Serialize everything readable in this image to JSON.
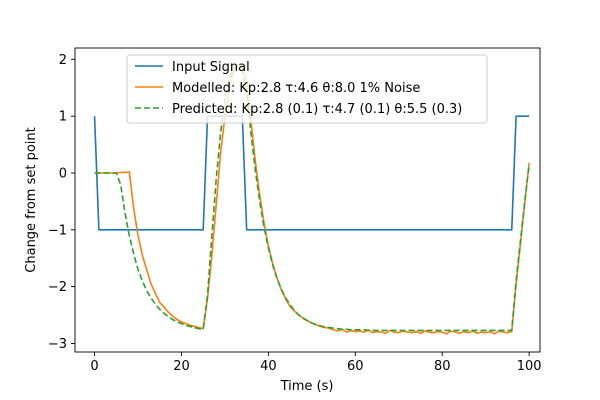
{
  "chart_data": {
    "type": "line",
    "xlabel": "Time (s)",
    "ylabel": "Change from set point",
    "xlim": [
      -4.5,
      102.5
    ],
    "ylim": [
      -3.15,
      2.2
    ],
    "xticks": [
      0,
      20,
      40,
      60,
      80,
      100
    ],
    "xtick_labels": [
      "0",
      "20",
      "40",
      "60",
      "80",
      "100"
    ],
    "yticks": [
      -3,
      -2,
      -1,
      0,
      1,
      2
    ],
    "ytick_labels": [
      "−3",
      "−2",
      "−1",
      "0",
      "1",
      "2"
    ],
    "grid": false,
    "legend_position": "top-center",
    "series": [
      {
        "name": "Input Signal",
        "color": "#1f77b4",
        "style": "solid",
        "x": [
          0,
          1,
          25,
          26,
          34,
          35,
          96,
          97,
          100
        ],
        "y": [
          1,
          -1,
          -1,
          1,
          1,
          -1,
          -1,
          1,
          1
        ]
      },
      {
        "name": "Modelled: Kp:2.8 τ:4.6 θ:8.0  1% Noise",
        "color": "#ff7f0e",
        "style": "solid",
        "x": [
          0,
          1,
          2,
          3,
          4,
          5,
          6,
          7,
          8,
          9,
          10,
          11,
          12,
          13,
          14,
          15,
          16,
          17,
          18,
          19,
          20,
          21,
          22,
          23,
          24,
          25,
          26,
          27,
          28,
          29,
          30,
          31,
          32,
          33,
          34,
          35,
          36,
          37,
          38,
          39,
          40,
          41,
          42,
          43,
          44,
          45,
          46,
          47,
          48,
          49,
          50,
          51,
          52,
          53,
          54,
          55,
          56,
          57,
          58,
          59,
          60,
          61,
          62,
          63,
          64,
          65,
          66,
          67,
          68,
          69,
          70,
          71,
          72,
          73,
          74,
          75,
          76,
          77,
          78,
          79,
          80,
          81,
          82,
          83,
          84,
          85,
          86,
          87,
          88,
          89,
          90,
          91,
          92,
          93,
          94,
          95,
          96,
          97,
          98,
          99,
          100
        ],
        "y": [
          0,
          0,
          0,
          0,
          0,
          0,
          0.01,
          0.01,
          0.02,
          -0.62,
          -1.1,
          -1.45,
          -1.7,
          -1.95,
          -2.12,
          -2.28,
          -2.36,
          -2.45,
          -2.52,
          -2.58,
          -2.62,
          -2.65,
          -2.68,
          -2.7,
          -2.72,
          -2.74,
          -2.2,
          -1.45,
          -0.55,
          0.35,
          1.0,
          1.5,
          1.8,
          1.9,
          1.9,
          1.62,
          0.92,
          0.2,
          -0.38,
          -0.88,
          -1.28,
          -1.6,
          -1.85,
          -2.06,
          -2.22,
          -2.35,
          -2.43,
          -2.5,
          -2.55,
          -2.6,
          -2.64,
          -2.67,
          -2.7,
          -2.72,
          -2.73,
          -2.76,
          -2.78,
          -2.75,
          -2.8,
          -2.77,
          -2.79,
          -2.78,
          -2.8,
          -2.76,
          -2.81,
          -2.79,
          -2.8,
          -2.82,
          -2.77,
          -2.8,
          -2.81,
          -2.78,
          -2.8,
          -2.81,
          -2.79,
          -2.82,
          -2.78,
          -2.8,
          -2.81,
          -2.79,
          -2.8,
          -2.83,
          -2.78,
          -2.8,
          -2.82,
          -2.79,
          -2.81,
          -2.78,
          -2.82,
          -2.8,
          -2.81,
          -2.79,
          -2.83,
          -2.78,
          -2.8,
          -2.81,
          -2.79,
          -1.95,
          -1.25,
          -0.52,
          0.18
        ]
      },
      {
        "name": "Predicted: Kp:2.8 (0.1) τ:4.7 (0.1) θ:5.5 (0.3)",
        "color": "#2ca02c",
        "style": "dashed",
        "x": [
          0,
          1,
          2,
          3,
          4,
          5,
          6,
          7,
          8,
          9,
          10,
          11,
          12,
          13,
          14,
          15,
          16,
          17,
          18,
          19,
          20,
          21,
          22,
          23,
          24,
          25,
          26,
          27,
          28,
          29,
          30,
          31,
          32,
          33,
          34,
          35,
          36,
          37,
          38,
          39,
          40,
          41,
          42,
          43,
          44,
          45,
          46,
          47,
          48,
          49,
          50,
          51,
          52,
          53,
          54,
          55,
          56,
          57,
          58,
          59,
          60,
          61,
          62,
          63,
          64,
          65,
          66,
          67,
          68,
          69,
          70,
          75,
          80,
          85,
          90,
          95,
          96,
          97,
          98,
          99,
          100
        ],
        "y": [
          0,
          0,
          0,
          0,
          0,
          0,
          -0.2,
          -0.7,
          -1.1,
          -1.42,
          -1.7,
          -1.9,
          -2.07,
          -2.2,
          -2.31,
          -2.4,
          -2.47,
          -2.53,
          -2.58,
          -2.62,
          -2.65,
          -2.68,
          -2.7,
          -2.72,
          -2.74,
          -2.75,
          -2.15,
          -1.1,
          -0.1,
          0.7,
          1.3,
          1.65,
          1.85,
          1.85,
          1.78,
          1.4,
          0.7,
          0.05,
          -0.5,
          -0.95,
          -1.32,
          -1.62,
          -1.86,
          -2.05,
          -2.2,
          -2.32,
          -2.42,
          -2.5,
          -2.56,
          -2.6,
          -2.64,
          -2.67,
          -2.69,
          -2.71,
          -2.72,
          -2.73,
          -2.74,
          -2.75,
          -2.75,
          -2.76,
          -2.76,
          -2.76,
          -2.76,
          -2.77,
          -2.77,
          -2.77,
          -2.77,
          -2.77,
          -2.77,
          -2.77,
          -2.77,
          -2.77,
          -2.77,
          -2.77,
          -2.77,
          -2.77,
          -2.77,
          -1.9,
          -1.2,
          -0.5,
          0.15
        ]
      }
    ]
  }
}
